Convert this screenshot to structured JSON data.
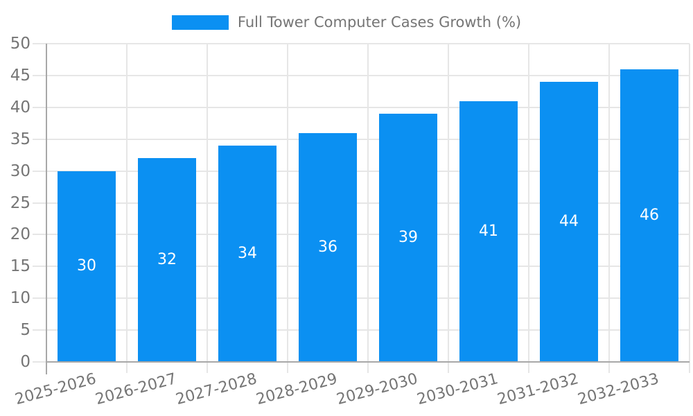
{
  "legend": {
    "label": "Full Tower Computer Cases Growth (%)"
  },
  "chart_data": {
    "type": "bar",
    "title": "Full Tower Computer Cases Growth (%)",
    "categories": [
      "2025-2026",
      "2026-2027",
      "2027-2028",
      "2028-2029",
      "2029-2030",
      "2030-2031",
      "2031-2032",
      "2032-2033"
    ],
    "values": [
      30,
      32,
      34,
      36,
      39,
      41,
      44,
      46
    ],
    "value_labels": [
      "30",
      "32",
      "34",
      "36",
      "39",
      "41",
      "44",
      "46"
    ],
    "xlabel": "",
    "ylabel": "",
    "ylim": [
      0,
      50
    ],
    "ytick_step": 5,
    "grid": true,
    "legend_position": "top",
    "colors": {
      "bar": "#0b90f2",
      "grid": "#e6e6e6",
      "axis": "#a8a8a8",
      "tick_label": "#757575",
      "legend_text": "#757575",
      "value_label": "#ffffff"
    }
  }
}
